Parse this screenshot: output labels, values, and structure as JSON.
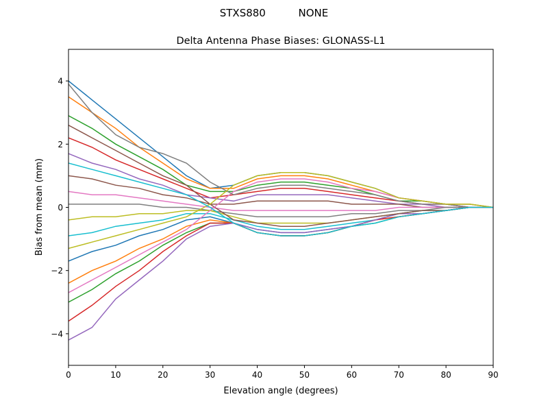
{
  "chart_data": {
    "type": "line",
    "suptitle": "STXS880          NONE",
    "title": "Delta Antenna Phase Biases: GLONASS-L1",
    "xlabel": "Elevation angle (degrees)",
    "ylabel": "Bias from mean (mm)",
    "xlim": [
      0,
      90
    ],
    "ylim": [
      -5,
      5
    ],
    "xticks": [
      0,
      10,
      20,
      30,
      40,
      50,
      60,
      70,
      80,
      90
    ],
    "yticks": [
      -4,
      -2,
      0,
      2,
      4
    ],
    "grid": false,
    "x": [
      0,
      5,
      10,
      15,
      20,
      25,
      30,
      35,
      40,
      45,
      50,
      55,
      60,
      65,
      70,
      75,
      80,
      85,
      90
    ],
    "colors": [
      "#1f77b4",
      "#ff7f0e",
      "#2ca02c",
      "#d62728",
      "#9467bd",
      "#8c564b",
      "#e377c2",
      "#7f7f7f",
      "#bcbd22",
      "#17becf"
    ],
    "series": [
      {
        "values": [
          4.0,
          3.4,
          2.8,
          2.2,
          1.6,
          1.0,
          0.6,
          0.7,
          1.0,
          1.1,
          1.1,
          1.0,
          0.8,
          0.6,
          0.3,
          0.2,
          0.1,
          0.1,
          0
        ]
      },
      {
        "values": [
          3.5,
          3.0,
          2.5,
          1.9,
          1.4,
          0.9,
          0.6,
          0.6,
          0.9,
          1.0,
          1.0,
          0.9,
          0.7,
          0.5,
          0.3,
          0.2,
          0.1,
          0.1,
          0
        ]
      },
      {
        "values": [
          2.9,
          2.5,
          2.0,
          1.6,
          1.2,
          0.7,
          0.5,
          0.5,
          0.7,
          0.8,
          0.8,
          0.7,
          0.6,
          0.4,
          0.2,
          0.2,
          0.1,
          0,
          0
        ]
      },
      {
        "values": [
          2.2,
          1.9,
          1.5,
          1.2,
          0.9,
          0.6,
          0.3,
          0.4,
          0.5,
          0.6,
          0.6,
          0.5,
          0.4,
          0.3,
          0.2,
          0.1,
          0.1,
          0,
          0
        ]
      },
      {
        "values": [
          1.7,
          1.4,
          1.2,
          0.9,
          0.7,
          0.4,
          0.3,
          0.2,
          0.4,
          0.4,
          0.4,
          0.4,
          0.3,
          0.2,
          0.1,
          0.1,
          0,
          0,
          0
        ]
      },
      {
        "values": [
          1.0,
          0.9,
          0.7,
          0.6,
          0.4,
          0.3,
          0.1,
          0.1,
          0.2,
          0.2,
          0.2,
          0.2,
          0.1,
          0.1,
          0.1,
          0,
          0,
          0,
          0
        ]
      },
      {
        "values": [
          0.5,
          0.4,
          0.4,
          0.3,
          0.2,
          0.1,
          0,
          -0.1,
          -0.1,
          -0.1,
          -0.1,
          -0.1,
          -0.1,
          -0.1,
          0,
          0,
          0,
          0,
          0
        ]
      },
      {
        "values": [
          0.1,
          0.1,
          0.1,
          0.1,
          0,
          0,
          -0.1,
          -0.2,
          -0.3,
          -0.3,
          -0.3,
          -0.3,
          -0.2,
          -0.2,
          -0.1,
          -0.1,
          0,
          0,
          0
        ]
      },
      {
        "values": [
          -0.4,
          -0.3,
          -0.3,
          -0.2,
          -0.2,
          -0.1,
          -0.1,
          -0.3,
          -0.5,
          -0.5,
          -0.5,
          -0.5,
          -0.4,
          -0.3,
          -0.2,
          -0.1,
          -0.1,
          0,
          0
        ]
      },
      {
        "values": [
          -0.9,
          -0.8,
          -0.6,
          -0.5,
          -0.4,
          -0.2,
          -0.2,
          -0.4,
          -0.6,
          -0.7,
          -0.7,
          -0.6,
          -0.5,
          -0.4,
          -0.2,
          -0.1,
          -0.1,
          0,
          0
        ]
      },
      {
        "values": [
          -1.7,
          -1.4,
          -1.2,
          -0.9,
          -0.7,
          -0.4,
          -0.3,
          -0.5,
          -0.7,
          -0.8,
          -0.8,
          -0.7,
          -0.6,
          -0.4,
          -0.2,
          -0.2,
          -0.1,
          0,
          0
        ]
      },
      {
        "values": [
          -2.4,
          -2.0,
          -1.7,
          -1.3,
          -1.0,
          -0.6,
          -0.4,
          -0.5,
          -0.8,
          -0.9,
          -0.9,
          -0.8,
          -0.6,
          -0.4,
          -0.3,
          -0.2,
          -0.1,
          0,
          0
        ]
      },
      {
        "values": [
          -3.0,
          -2.6,
          -2.1,
          -1.7,
          -1.2,
          -0.8,
          -0.5,
          -0.5,
          -0.8,
          -0.9,
          -0.9,
          -0.8,
          -0.6,
          -0.5,
          -0.3,
          -0.2,
          -0.1,
          0,
          0
        ]
      },
      {
        "values": [
          -3.6,
          -3.1,
          -2.5,
          -2.0,
          -1.4,
          -0.9,
          -0.5,
          -0.5,
          -0.8,
          -0.9,
          -0.9,
          -0.8,
          -0.6,
          -0.4,
          -0.3,
          -0.2,
          -0.1,
          0,
          0
        ]
      },
      {
        "values": [
          -4.2,
          -3.8,
          -2.9,
          -2.3,
          -1.7,
          -1.0,
          -0.6,
          -0.5,
          -0.7,
          -0.8,
          -0.8,
          -0.7,
          -0.6,
          -0.4,
          -0.2,
          -0.2,
          -0.1,
          0,
          0
        ]
      },
      {
        "values": [
          2.6,
          2.2,
          1.8,
          1.4,
          1.0,
          0.7,
          0.1,
          -0.4,
          -0.5,
          -0.6,
          -0.6,
          -0.5,
          -0.4,
          -0.3,
          -0.2,
          -0.1,
          -0.1,
          0,
          0
        ]
      },
      {
        "values": [
          -2.7,
          -2.3,
          -1.9,
          -1.5,
          -1.1,
          -0.7,
          -0.1,
          0.5,
          0.8,
          0.9,
          0.9,
          0.8,
          0.6,
          0.5,
          0.3,
          0.2,
          0.1,
          0,
          0
        ]
      },
      {
        "values": [
          3.9,
          3.0,
          2.3,
          1.9,
          1.7,
          1.4,
          0.8,
          0.4,
          0.6,
          0.7,
          0.7,
          0.6,
          0.5,
          0.4,
          0.2,
          0.1,
          0.1,
          0,
          0
        ]
      },
      {
        "values": [
          -1.3,
          -1.1,
          -0.9,
          -0.7,
          -0.5,
          -0.3,
          0.1,
          0.7,
          1.0,
          1.1,
          1.1,
          1.0,
          0.8,
          0.6,
          0.3,
          0.2,
          0.1,
          0.1,
          0
        ]
      },
      {
        "values": [
          1.4,
          1.2,
          1.0,
          0.8,
          0.6,
          0.4,
          0,
          -0.5,
          -0.8,
          -0.9,
          -0.9,
          -0.8,
          -0.6,
          -0.5,
          -0.3,
          -0.2,
          -0.1,
          0,
          0
        ]
      }
    ]
  }
}
